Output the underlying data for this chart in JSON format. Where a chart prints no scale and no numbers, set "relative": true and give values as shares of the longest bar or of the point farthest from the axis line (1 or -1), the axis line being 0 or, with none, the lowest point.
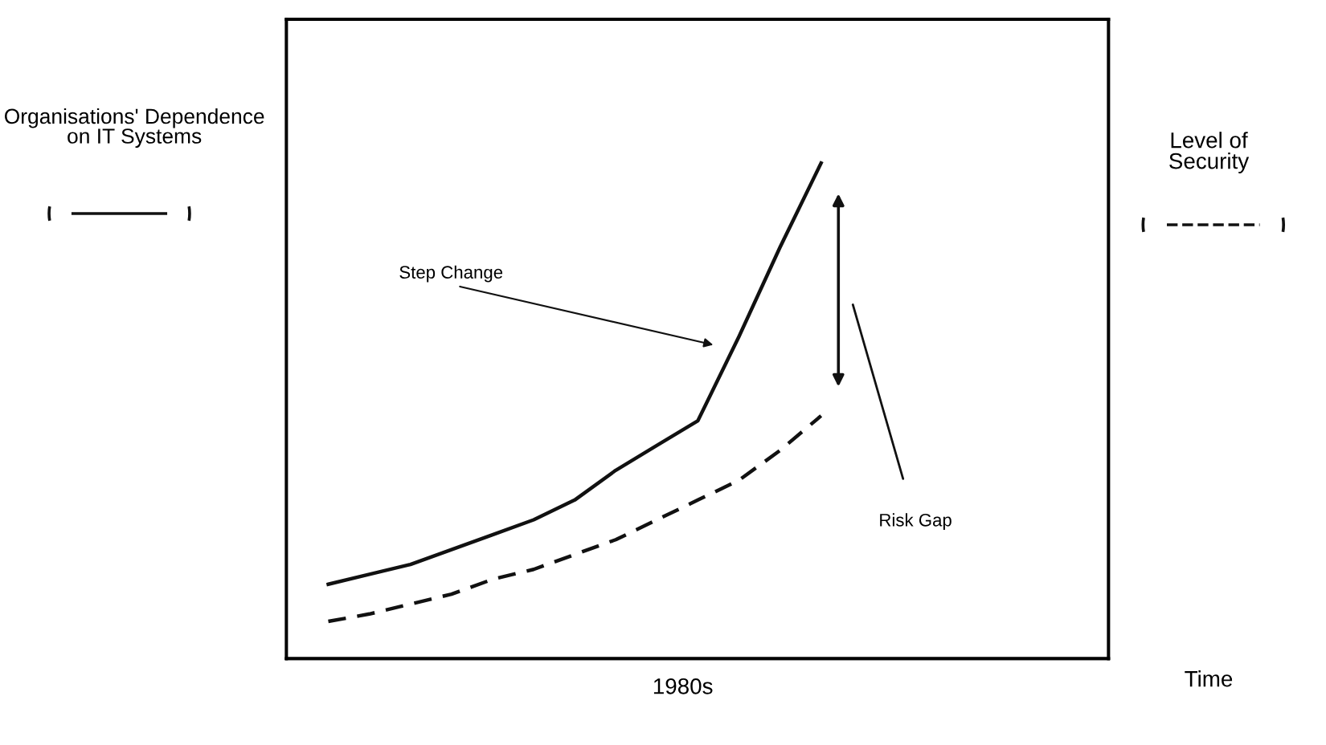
{
  "chart_data": {
    "type": "line",
    "relative": true,
    "categories": [
      null,
      null,
      null,
      null,
      null,
      null,
      null,
      null,
      null,
      null,
      null,
      null,
      null
    ],
    "ylabel": "Organisations' Dependence\non IT Systems",
    "series": [
      {
        "color": "#111111",
        "line_style": "solid",
        "values": [
          0.15,
          0.17,
          0.19,
          0.22,
          0.25,
          0.28,
          0.32,
          0.38,
          0.43,
          0.48,
          0.65,
          0.83,
          1.0
        ]
      },
      {
        "color": "#111111",
        "line_style": "dashed",
        "values": [
          0.075,
          0.09,
          0.11,
          0.13,
          0.16,
          0.18,
          0.21,
          0.24,
          0.28,
          0.32,
          0.36,
          0.42,
          0.49
        ]
      }
    ],
    "annotations": [
      "Step Change",
      "Risk Gap",
      "1980s",
      "Time",
      "Level of\nSecurity"
    ],
    "grid": false,
    "legend": false
  }
}
